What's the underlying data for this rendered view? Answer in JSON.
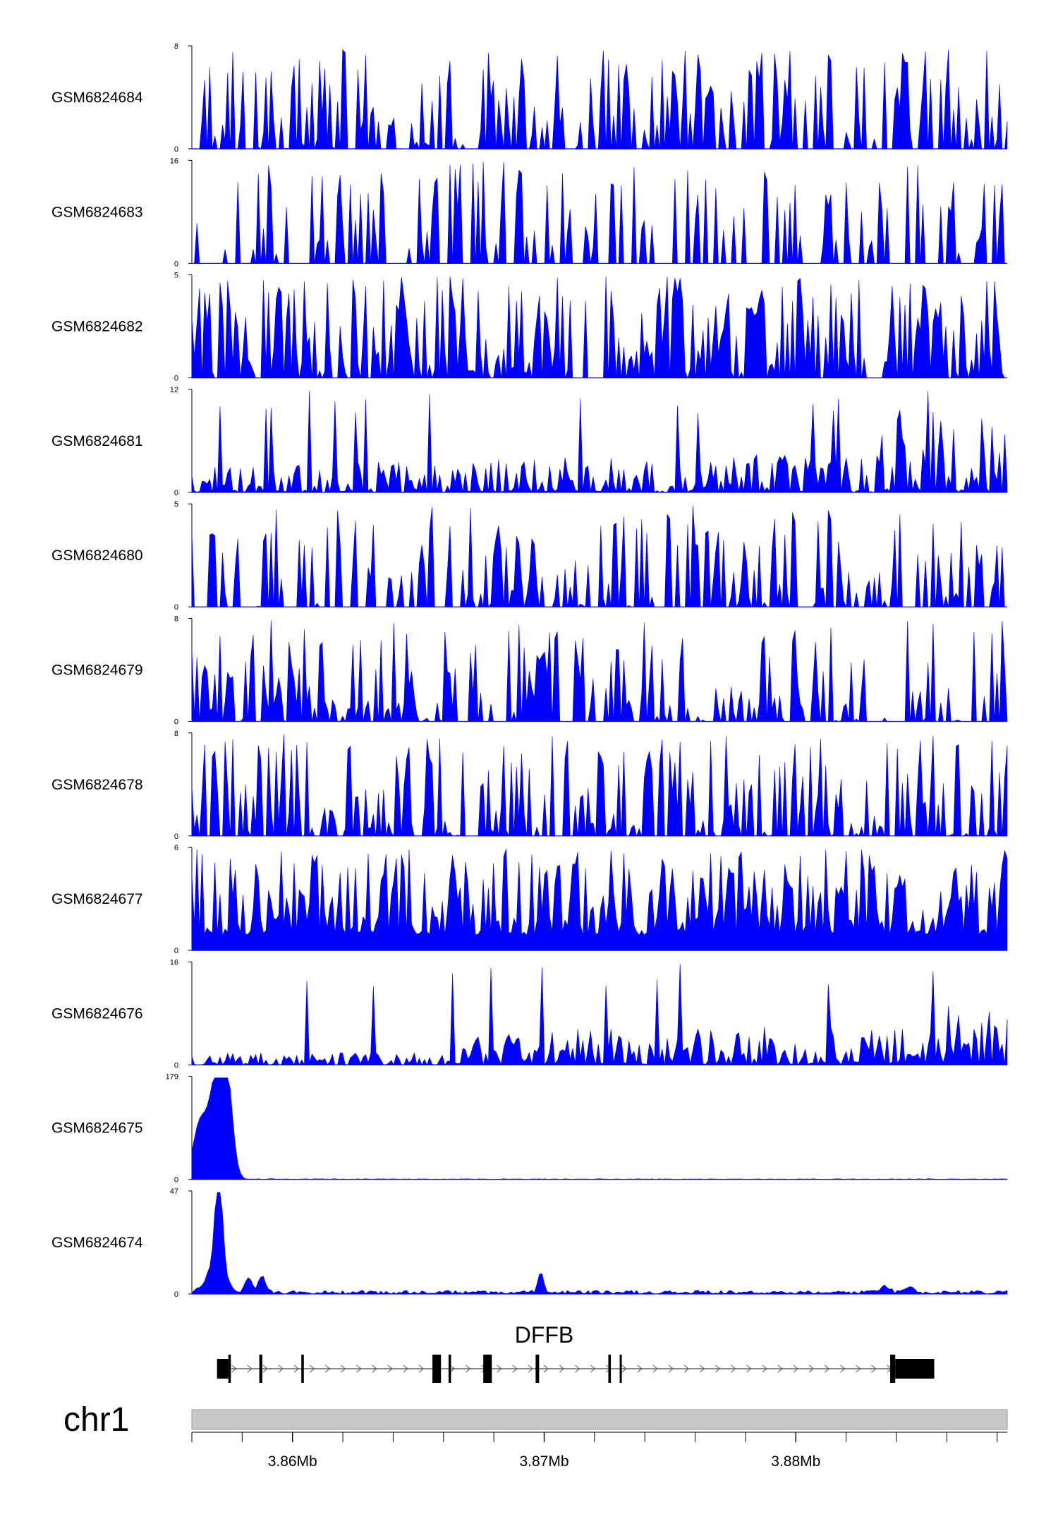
{
  "chart_data": {
    "type": "area",
    "color": "#0000ff",
    "region": {
      "chrom": "chr1",
      "start": 3856000,
      "end": 3888400
    },
    "xticks": [
      {
        "pos": 3860000,
        "label": "3.86Mb"
      },
      {
        "pos": 3870000,
        "label": "3.87Mb"
      },
      {
        "pos": 3880000,
        "label": "3.88Mb"
      }
    ],
    "tracks": [
      {
        "name": "GSM6824684",
        "ymax": 8,
        "ymin": 0,
        "ymax_label": "8",
        "ymin_label": "0"
      },
      {
        "name": "GSM6824683",
        "ymax": 16,
        "ymin": 0,
        "ymax_label": "16",
        "ymin_label": "0"
      },
      {
        "name": "GSM6824682",
        "ymax": 5,
        "ymin": 0,
        "ymax_label": "5",
        "ymin_label": "0"
      },
      {
        "name": "GSM6824681",
        "ymax": 12,
        "ymin": 0,
        "ymax_label": "12",
        "ymin_label": "0"
      },
      {
        "name": "GSM6824680",
        "ymax": 5,
        "ymin": 0,
        "ymax_label": "5",
        "ymin_label": "0"
      },
      {
        "name": "GSM6824679",
        "ymax": 8,
        "ymin": 0,
        "ymax_label": "8",
        "ymin_label": "0"
      },
      {
        "name": "GSM6824678",
        "ymax": 8,
        "ymin": 0,
        "ymax_label": "8",
        "ymin_label": "0"
      },
      {
        "name": "GSM6824677",
        "ymax": 6,
        "ymin": 0,
        "ymax_label": "6",
        "ymin_label": "0"
      },
      {
        "name": "GSM6824676",
        "ymax": 16,
        "ymin": 0,
        "ymax_label": "16",
        "ymin_label": "0"
      },
      {
        "name": "GSM6824675",
        "ymax": 179,
        "ymin": 0,
        "ymax_label": "179",
        "ymin_label": "0"
      },
      {
        "name": "GSM6824674",
        "ymax": 47,
        "ymin": 0,
        "ymax_label": "47",
        "ymin_label": "0"
      }
    ],
    "gene": {
      "name": "DFFB",
      "strand": "+",
      "start": 3857000,
      "end": 3885500,
      "exons": [
        {
          "start": 3857000,
          "end": 3857450,
          "kind": "utr"
        },
        {
          "start": 3857450,
          "end": 3857550,
          "kind": "cds"
        },
        {
          "start": 3858680,
          "end": 3858800,
          "kind": "cds"
        },
        {
          "start": 3860350,
          "end": 3860450,
          "kind": "cds"
        },
        {
          "start": 3865560,
          "end": 3865900,
          "kind": "cds"
        },
        {
          "start": 3866200,
          "end": 3866300,
          "kind": "cds"
        },
        {
          "start": 3867580,
          "end": 3867920,
          "kind": "cds"
        },
        {
          "start": 3869660,
          "end": 3869800,
          "kind": "cds"
        },
        {
          "start": 3872550,
          "end": 3872650,
          "kind": "cds"
        },
        {
          "start": 3873000,
          "end": 3873080,
          "kind": "cds"
        },
        {
          "start": 3883750,
          "end": 3883950,
          "kind": "cds"
        },
        {
          "start": 3883950,
          "end": 3885500,
          "kind": "utr"
        }
      ]
    }
  }
}
